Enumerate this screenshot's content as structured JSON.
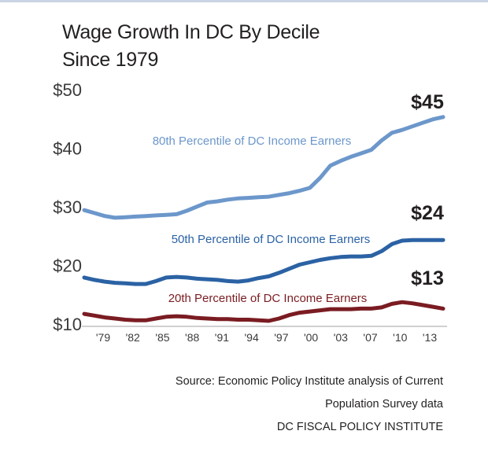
{
  "chart_title": [
    "Wage Growth In DC By Decile",
    "Since 1979"
  ],
  "chart_data": {
    "type": "line",
    "title": "Wage Growth In DC By Decile Since 1979",
    "x": [
      "1979",
      "1980",
      "1981",
      "1982",
      "1983",
      "1984",
      "1985",
      "1986",
      "1987",
      "1988",
      "1989",
      "1990",
      "1991",
      "1992",
      "1993",
      "1994",
      "1995",
      "1996",
      "1997",
      "1998",
      "1999",
      "2000",
      "2001",
      "2002",
      "2003",
      "2004",
      "2005",
      "2006",
      "2007",
      "2008",
      "2009",
      "2010",
      "2011",
      "2012",
      "2013",
      "2014"
    ],
    "x_tick_labels": [
      "'79",
      "'82",
      "'85",
      "'88",
      "'91",
      "'94",
      "'97",
      "'00",
      "'03",
      "'07",
      "'10",
      "'13"
    ],
    "ylim": [
      10,
      50
    ],
    "y_ticks": [
      10,
      20,
      30,
      40,
      50
    ],
    "y_tick_labels": [
      "$10",
      "$20",
      "$30",
      "$40",
      "$50"
    ],
    "grid": false,
    "series": [
      {
        "name": "80th Percentile of DC Income Earners",
        "color": "#6c97cb",
        "end_label": "$45",
        "values": [
          29.3,
          28.8,
          28.3,
          28.0,
          28.1,
          28.2,
          28.3,
          28.4,
          28.5,
          28.6,
          29.2,
          29.9,
          30.6,
          30.8,
          31.1,
          31.3,
          31.4,
          31.5,
          31.6,
          31.9,
          32.2,
          32.6,
          33.1,
          34.8,
          36.9,
          37.7,
          38.4,
          39.0,
          39.6,
          41.2,
          42.5,
          43.0,
          43.6,
          44.2,
          44.8,
          45.2
        ]
      },
      {
        "name": "50th Percentile of DC Income Earners",
        "color": "#2b62a4",
        "end_label": "$24",
        "values": [
          17.8,
          17.4,
          17.1,
          16.9,
          16.8,
          16.7,
          16.7,
          17.2,
          17.8,
          17.9,
          17.8,
          17.6,
          17.5,
          17.4,
          17.2,
          17.1,
          17.3,
          17.7,
          18.0,
          18.6,
          19.3,
          20.0,
          20.4,
          20.8,
          21.1,
          21.3,
          21.4,
          21.4,
          21.5,
          22.3,
          23.5,
          24.1,
          24.2,
          24.2,
          24.2,
          24.2
        ]
      },
      {
        "name": "20th Percentile of DC Income Earners",
        "color": "#7a1c22",
        "end_label": "$13",
        "values": [
          11.6,
          11.3,
          11.0,
          10.8,
          10.6,
          10.5,
          10.5,
          10.8,
          11.1,
          11.2,
          11.1,
          10.9,
          10.8,
          10.7,
          10.7,
          10.6,
          10.6,
          10.5,
          10.4,
          10.8,
          11.4,
          11.8,
          12.0,
          12.2,
          12.4,
          12.4,
          12.4,
          12.5,
          12.5,
          12.7,
          13.3,
          13.6,
          13.4,
          13.1,
          12.8,
          12.5
        ]
      }
    ]
  },
  "source": [
    "Source: Economic Policy Institute analysis of Current",
    "Population Survey data",
    "DC FISCAL POLICY INSTITUTE"
  ]
}
